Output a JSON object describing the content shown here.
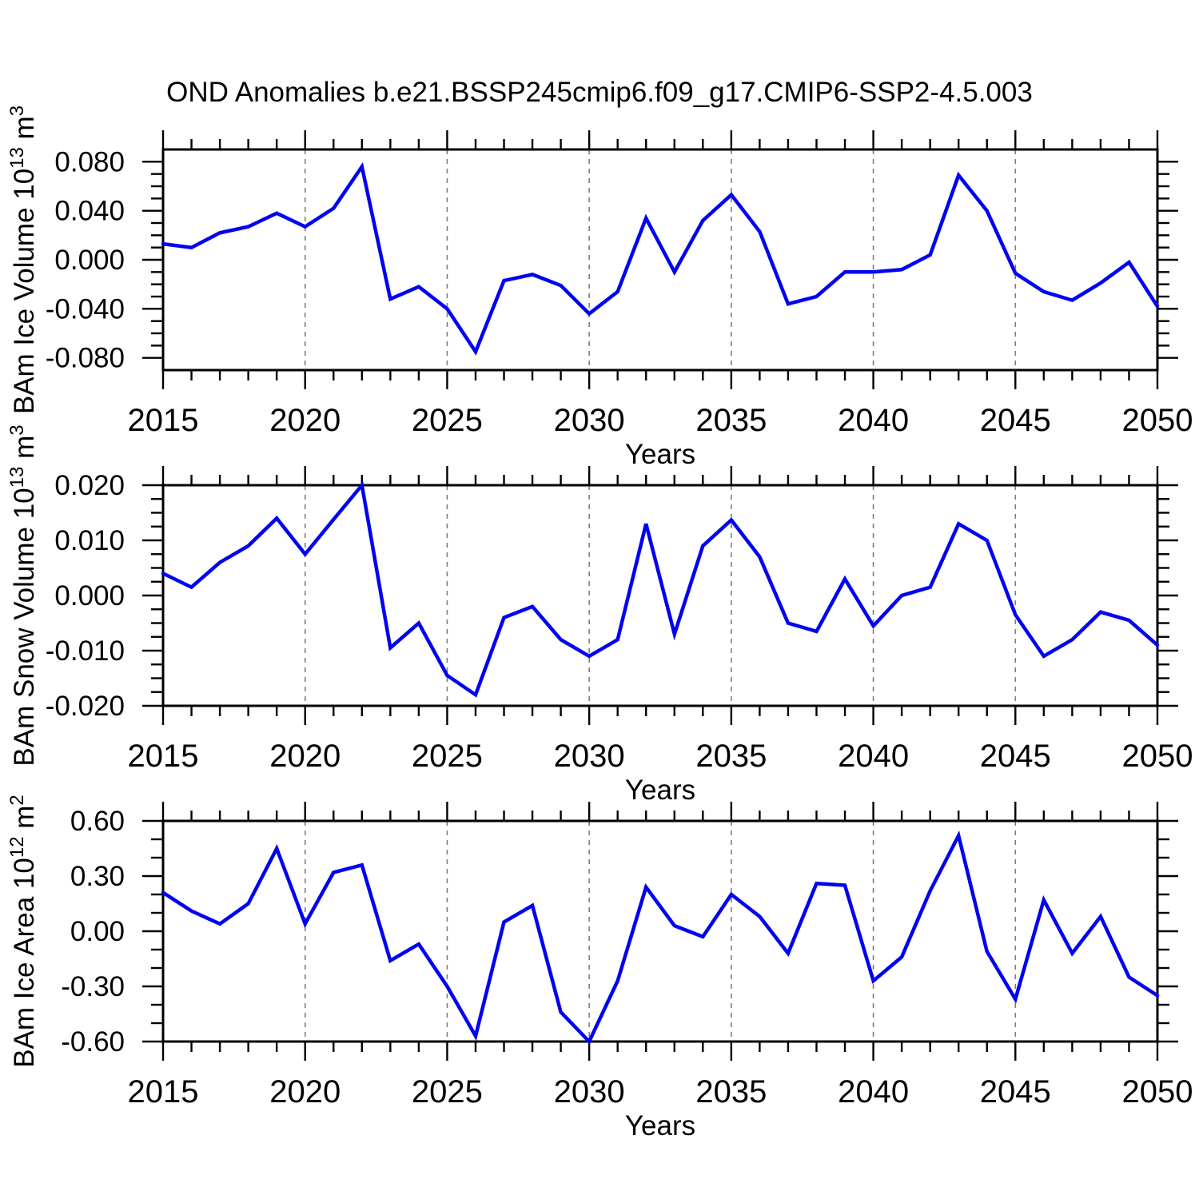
{
  "figure": {
    "title": "OND Anomalies b.e21.BSSP245cmip6.f09_g17.CMIP6-SSP2-4.5.003",
    "background": "#ffffff"
  },
  "colors": {
    "line": "#0000f2",
    "grid": "#7d7d7d",
    "axis": "#000000",
    "text": "#000000"
  },
  "x_axis": {
    "label": "Years",
    "range": [
      2015,
      2050
    ],
    "tick_years": [
      2015,
      2020,
      2025,
      2030,
      2035,
      2040,
      2045,
      2050
    ],
    "tick_labels": [
      "2015",
      "2020",
      "2025",
      "2030",
      "2035",
      "2040",
      "2045",
      "2050"
    ],
    "minor_step": 1,
    "grid_years": [
      2020,
      2025,
      2030,
      2035,
      2040,
      2045
    ]
  },
  "chart_data": [
    {
      "id": "ice-volume",
      "type": "line",
      "ylabel": "BAm Ice Volume 10^13 m^3",
      "ylabel_parts": {
        "base": "BAm Ice Volume 10",
        "exp": "13",
        "unit": " m",
        "unit_exp": "3"
      },
      "xlabel": "Years",
      "ylim": [
        -0.09,
        0.09
      ],
      "grid": "vertical-dashed",
      "legend": "none",
      "yticks": [
        {
          "label": "0.080",
          "value": 0.08
        },
        {
          "label": "0.040",
          "value": 0.04
        },
        {
          "label": "0.000",
          "value": 0.0
        },
        {
          "label": "-0.040",
          "value": -0.04
        },
        {
          "label": "-0.080",
          "value": -0.08
        }
      ],
      "y_minor_step": 0.01,
      "years": [
        2015,
        2016,
        2017,
        2018,
        2019,
        2020,
        2021,
        2022,
        2023,
        2024,
        2025,
        2026,
        2027,
        2028,
        2029,
        2030,
        2031,
        2032,
        2033,
        2034,
        2035,
        2036,
        2037,
        2038,
        2039,
        2040,
        2041,
        2042,
        2043,
        2044,
        2045,
        2046,
        2047,
        2048,
        2049,
        2050
      ],
      "values": [
        0.013,
        0.01,
        0.022,
        0.027,
        0.038,
        0.027,
        0.042,
        0.076,
        -0.032,
        -0.022,
        -0.04,
        -0.075,
        -0.017,
        -0.012,
        -0.021,
        -0.044,
        -0.026,
        0.034,
        -0.01,
        0.032,
        0.053,
        0.023,
        -0.036,
        -0.03,
        -0.01,
        -0.01,
        -0.008,
        0.004,
        0.069,
        0.04,
        -0.011,
        -0.026,
        -0.033,
        -0.019,
        -0.002,
        -0.038
      ]
    },
    {
      "id": "snow-volume",
      "type": "line",
      "ylabel": "BAm Snow Volume 10^13 m^3",
      "ylabel_parts": {
        "base": "BAm Snow Volume 10",
        "exp": "13",
        "unit": " m",
        "unit_exp": "3"
      },
      "xlabel": "Years",
      "ylim": [
        -0.02,
        0.02
      ],
      "grid": "vertical-dashed",
      "legend": "none",
      "yticks": [
        {
          "label": "0.020",
          "value": 0.02
        },
        {
          "label": "0.010",
          "value": 0.01
        },
        {
          "label": "0.000",
          "value": 0.0
        },
        {
          "label": "-0.010",
          "value": -0.01
        },
        {
          "label": "-0.020",
          "value": -0.02
        }
      ],
      "y_minor_step": 0.0025,
      "years": [
        2015,
        2016,
        2017,
        2018,
        2019,
        2020,
        2021,
        2022,
        2023,
        2024,
        2025,
        2026,
        2027,
        2028,
        2029,
        2030,
        2031,
        2032,
        2033,
        2034,
        2035,
        2036,
        2037,
        2038,
        2039,
        2040,
        2041,
        2042,
        2043,
        2044,
        2045,
        2046,
        2047,
        2048,
        2049,
        2050
      ],
      "values": [
        0.004,
        0.0015,
        0.006,
        0.009,
        0.014,
        0.0075,
        0.0138,
        0.02,
        -0.0095,
        -0.005,
        -0.0145,
        -0.018,
        -0.004,
        -0.002,
        -0.008,
        -0.011,
        -0.008,
        0.013,
        -0.007,
        0.009,
        0.0137,
        0.007,
        -0.005,
        -0.0065,
        0.003,
        -0.0055,
        0.0,
        0.0015,
        0.013,
        0.01,
        -0.0035,
        -0.011,
        -0.008,
        -0.003,
        -0.0045,
        -0.009
      ]
    },
    {
      "id": "ice-area",
      "type": "line",
      "ylabel": "BAm Ice Area 10^12 m^2",
      "ylabel_parts": {
        "base": "BAm Ice Area 10",
        "exp": "12",
        "unit": " m",
        "unit_exp": "2"
      },
      "xlabel": "Years",
      "ylim": [
        -0.6,
        0.6
      ],
      "grid": "vertical-dashed",
      "legend": "none",
      "yticks": [
        {
          "label": "0.60",
          "value": 0.6
        },
        {
          "label": "0.30",
          "value": 0.3
        },
        {
          "label": "0.00",
          "value": 0.0
        },
        {
          "label": "-0.30",
          "value": -0.3
        },
        {
          "label": "-0.60",
          "value": -0.6
        }
      ],
      "y_minor_step": 0.1,
      "years": [
        2015,
        2016,
        2017,
        2018,
        2019,
        2020,
        2021,
        2022,
        2023,
        2024,
        2025,
        2026,
        2027,
        2028,
        2029,
        2030,
        2031,
        2032,
        2033,
        2034,
        2035,
        2036,
        2037,
        2038,
        2039,
        2040,
        2041,
        2042,
        2043,
        2044,
        2045,
        2046,
        2047,
        2048,
        2049,
        2050
      ],
      "values": [
        0.21,
        0.11,
        0.04,
        0.15,
        0.45,
        0.04,
        0.32,
        0.36,
        -0.16,
        -0.07,
        -0.3,
        -0.57,
        0.05,
        0.14,
        -0.44,
        -0.6,
        -0.27,
        0.24,
        0.03,
        -0.03,
        0.2,
        0.08,
        -0.12,
        0.26,
        0.25,
        -0.27,
        -0.14,
        0.22,
        0.52,
        -0.11,
        -0.37,
        0.17,
        -0.12,
        0.08,
        -0.25,
        -0.35
      ]
    }
  ]
}
